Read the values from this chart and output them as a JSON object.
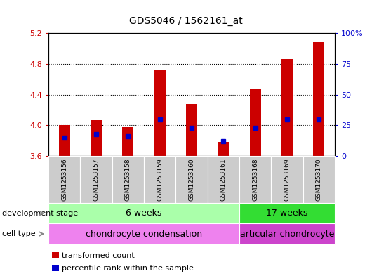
{
  "title": "GDS5046 / 1562161_at",
  "samples": [
    "GSM1253156",
    "GSM1253157",
    "GSM1253158",
    "GSM1253159",
    "GSM1253160",
    "GSM1253161",
    "GSM1253168",
    "GSM1253169",
    "GSM1253170"
  ],
  "transformed_count": [
    4.005,
    4.07,
    3.98,
    4.73,
    4.28,
    3.78,
    4.47,
    4.86,
    5.08
  ],
  "percentile_rank": [
    15,
    18,
    16,
    30,
    23,
    12,
    23,
    30,
    30
  ],
  "ylim": [
    3.6,
    5.2
  ],
  "ylim_right": [
    0,
    100
  ],
  "yticks_left": [
    3.6,
    4.0,
    4.4,
    4.8,
    5.2
  ],
  "yticks_right": [
    0,
    25,
    50,
    75,
    100
  ],
  "bar_color": "#cc0000",
  "blue_color": "#0000cc",
  "bar_width": 0.35,
  "development_stage_groups": [
    {
      "label": "6 weeks",
      "start": 0,
      "end": 6,
      "color": "#aaffaa"
    },
    {
      "label": "17 weeks",
      "start": 6,
      "end": 9,
      "color": "#33dd33"
    }
  ],
  "cell_type_groups": [
    {
      "label": "chondrocyte condensation",
      "start": 0,
      "end": 6,
      "color": "#ee82ee"
    },
    {
      "label": "articular chondrocyte",
      "start": 6,
      "end": 9,
      "color": "#cc44cc"
    }
  ],
  "dev_stage_label": "development stage",
  "cell_type_label": "cell type",
  "legend_transformed": "transformed count",
  "legend_percentile": "percentile rank within the sample",
  "background_color": "#ffffff",
  "plot_bg": "#ffffff",
  "ylabel_left_color": "#cc0000",
  "ylabel_right_color": "#0000cc",
  "sample_box_color": "#cccccc"
}
